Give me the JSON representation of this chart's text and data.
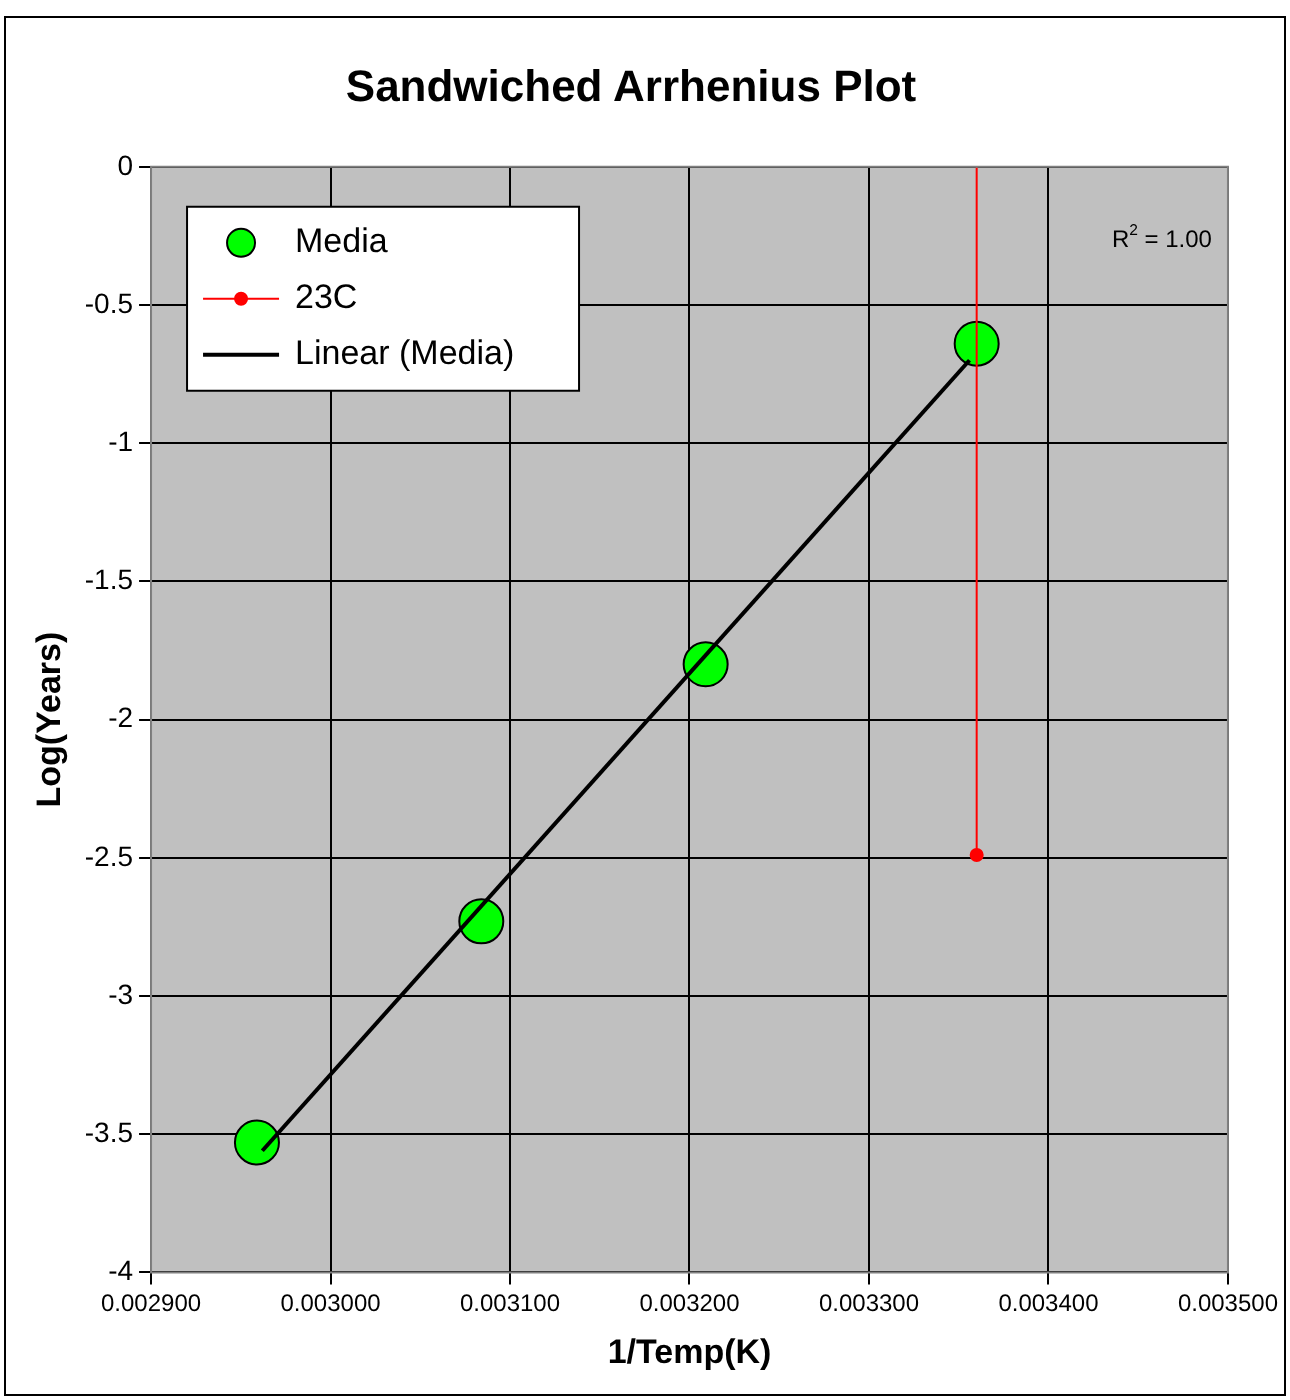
{
  "chart_data": {
    "type": "scatter",
    "title": "Sandwiched Arrhenius Plot",
    "xlabel": "1/Temp(K)",
    "ylabel": "Log(Years)",
    "xlim": [
      0.0029,
      0.0035
    ],
    "xticks": [
      {
        "value": 0.0029,
        "label": "0.002900"
      },
      {
        "value": 0.003,
        "label": "0.003000"
      },
      {
        "value": 0.0031,
        "label": "0.003100"
      },
      {
        "value": 0.0032,
        "label": "0.003200"
      },
      {
        "value": 0.0033,
        "label": "0.003300"
      },
      {
        "value": 0.0034,
        "label": "0.003400"
      },
      {
        "value": 0.0035,
        "label": "0.003500"
      }
    ],
    "ylim": [
      -4,
      0
    ],
    "yticks": [
      -4,
      -3.5,
      -3,
      -2.5,
      -2,
      -1.5,
      -1,
      -0.5,
      0
    ],
    "grid": true,
    "legend": "top left",
    "annotations": [
      "R$^{2}$ = 1.00"
    ],
    "series": [
      {
        "name": "Media",
        "type": "scatter",
        "color": "#00ff00",
        "marker": "circle",
        "x": [
          0.002959,
          0.003084,
          0.003209,
          0.00336
        ],
        "values": [
          -3.53,
          -2.73,
          -1.8,
          -0.64
        ]
      },
      {
        "name": "23C",
        "type": "line",
        "color": "#ff0000",
        "marker": "circle",
        "x": [
          0.00336,
          0.00336
        ],
        "values": [
          0,
          -2.49
        ]
      },
      {
        "name": "Linear (Media)",
        "type": "line",
        "color": "#000000",
        "marker": "none",
        "x": [
          0.002962,
          0.003356
        ],
        "values": [
          -3.56,
          -0.7
        ]
      }
    ]
  }
}
